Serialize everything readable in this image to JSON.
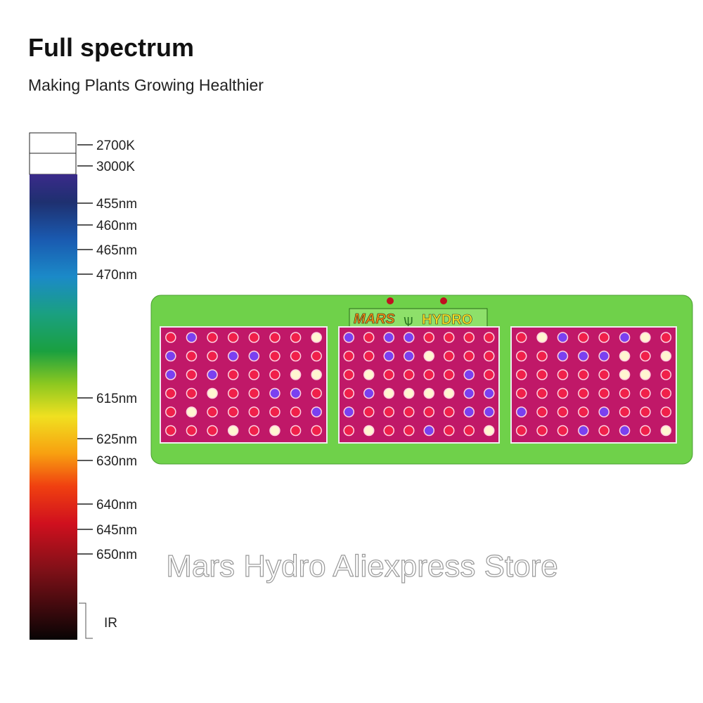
{
  "header": {
    "title": "Full spectrum",
    "subtitle": "Making Plants Growing Healthier"
  },
  "spectrum": {
    "labels": [
      "2700K",
      "3000K",
      "455nm",
      "460nm",
      "465nm",
      "470nm",
      "615nm",
      "625nm",
      "630nm",
      "640nm",
      "645nm",
      "650nm",
      "IR"
    ]
  },
  "product": {
    "brand_left": "MARS",
    "brand_right": "HYDRO"
  },
  "watermark": "Mars Hydro Aliexpress Store"
}
